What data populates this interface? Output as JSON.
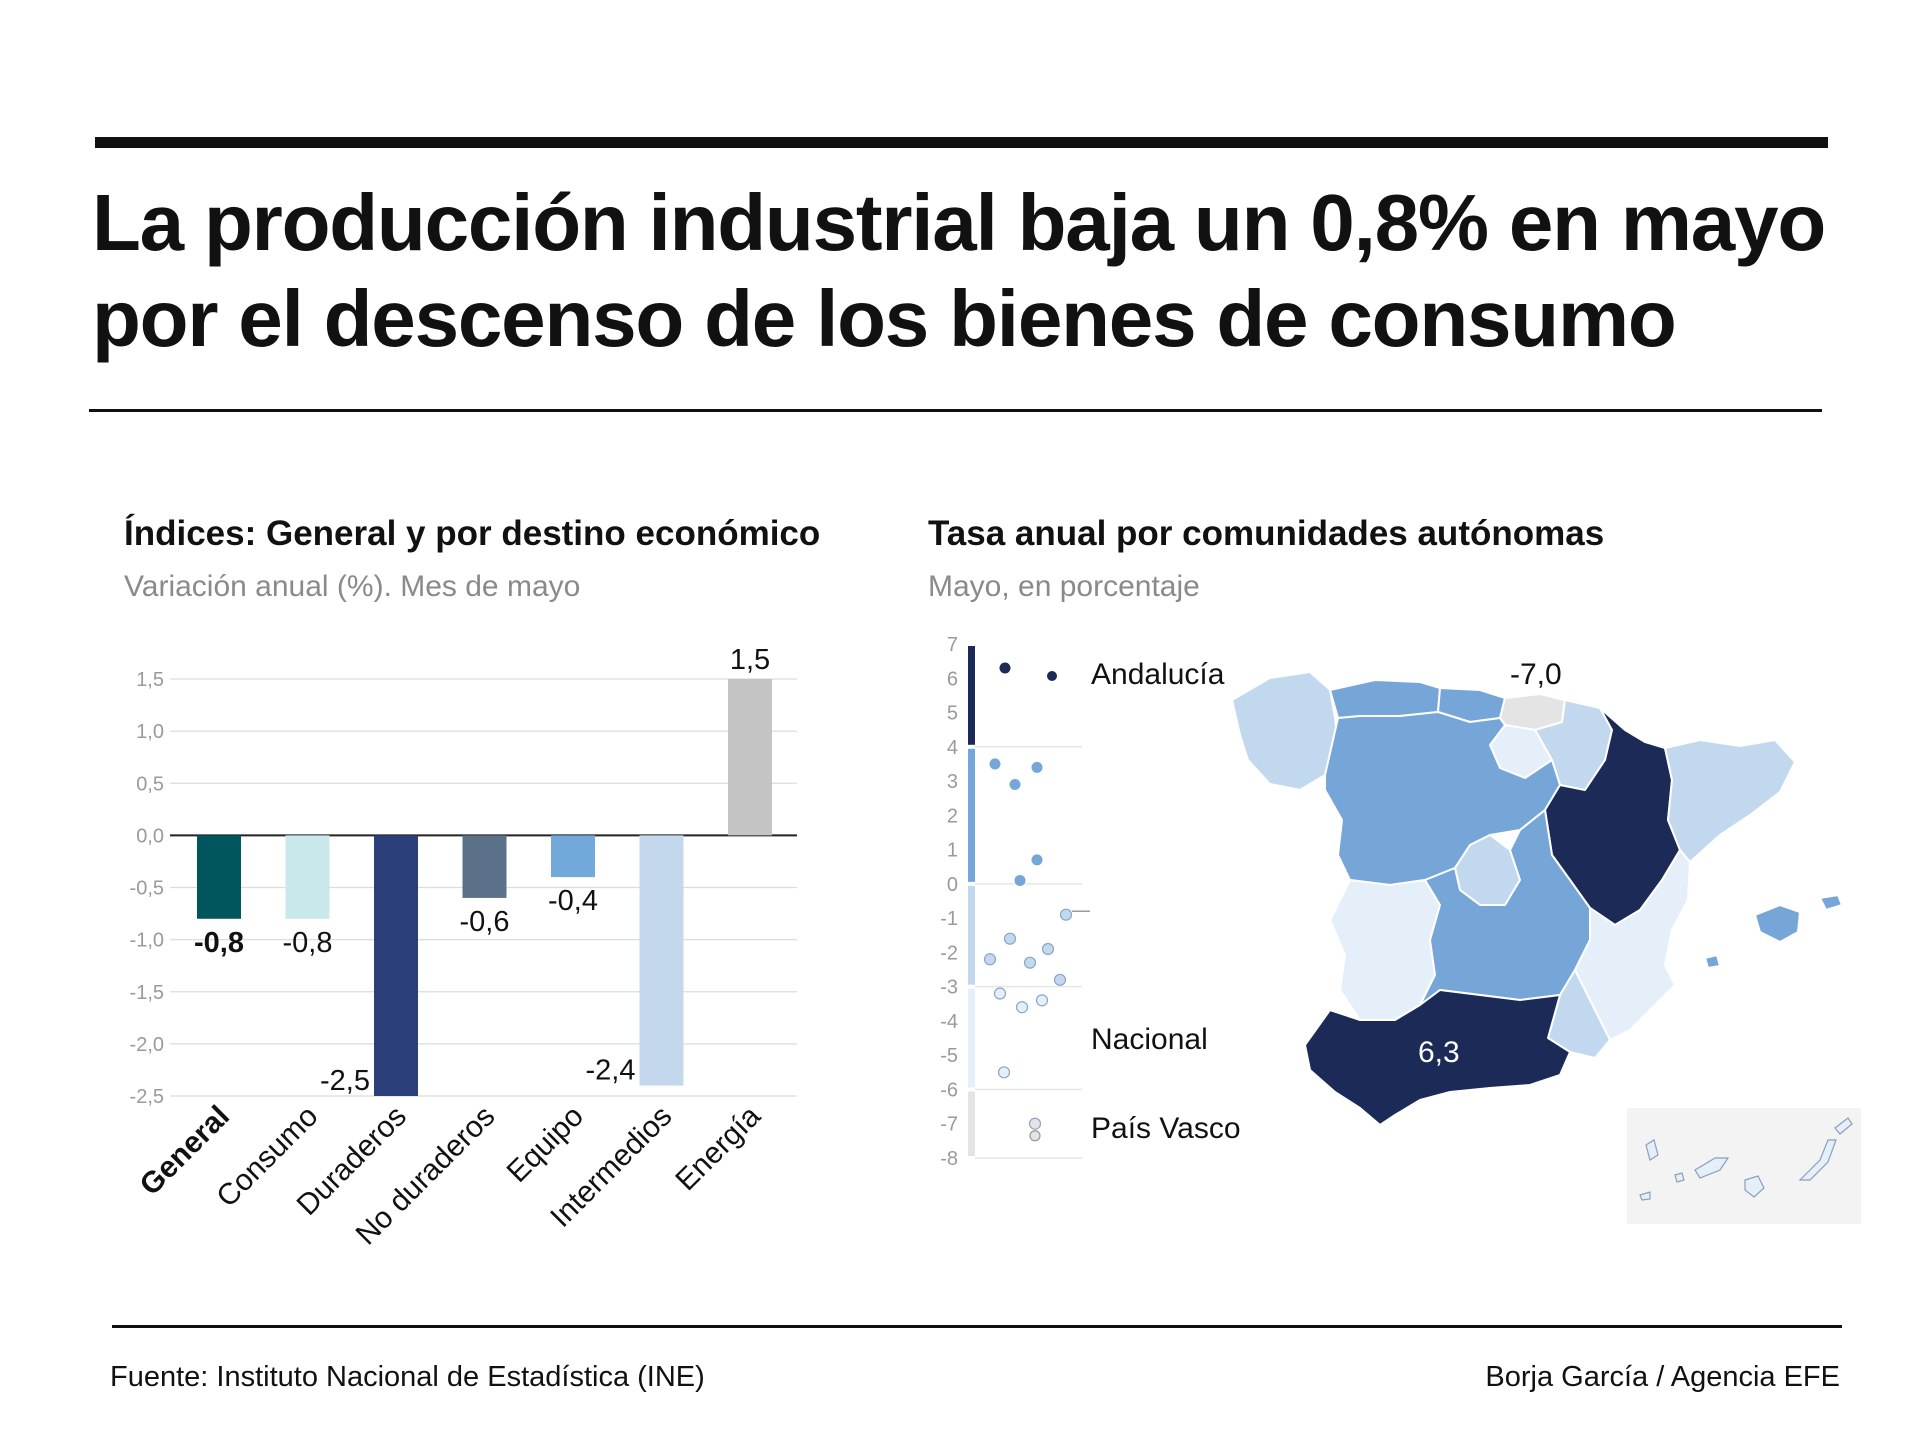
{
  "headline": {
    "line1": "La producción industrial baja un 0,8% en mayo",
    "line2": "por el descenso de los bienes de consumo"
  },
  "colors": {
    "general": "#00565c",
    "consumo": "#c9e8ec",
    "duraderos": "#2b3f7a",
    "no_duraderos": "#5b7189",
    "equipo": "#72a8da",
    "intermedios": "#c3d8ec",
    "energia": "#c4c4c4",
    "tier_dark": "#1b2a57",
    "tier_mid": "#76a6d8",
    "tier_light": "#c2d8ee",
    "tier_pale": "#e4eff9",
    "tier_grey": "#e4e4e4"
  },
  "chart_data": [
    {
      "type": "bar",
      "title": "Índices: General y por destino económico",
      "subtitle": "Variación anual (%). Mes de mayo",
      "categories": [
        "General",
        "Consumo",
        "Duraderos",
        "No duraderos",
        "Equipo",
        "Intermedios",
        "Energía"
      ],
      "values": [
        -0.8,
        -0.8,
        -2.5,
        -0.6,
        -0.4,
        -2.4,
        1.5
      ],
      "value_labels": [
        "-0,8",
        "-0,8",
        "-2,5",
        "-0,6",
        "-0,4",
        "-2,4",
        "1,5"
      ],
      "highlight": "General",
      "bar_colors": [
        "#00565c",
        "#c9e8ec",
        "#2b3f7a",
        "#5b7189",
        "#72a8da",
        "#c3d8ec",
        "#c4c4c4"
      ],
      "ylim": [
        -2.5,
        1.5
      ],
      "yticks": [
        1.5,
        1.0,
        0.5,
        0.0,
        -0.5,
        -1.0,
        -1.5,
        -2.0,
        -2.5
      ],
      "ytick_labels": [
        "1,5",
        "1,0",
        "0,5",
        "0,0",
        "-0,5",
        "-1,0",
        "-1,5",
        "-2,0",
        "-2,5"
      ],
      "grid": true,
      "xlabel": "",
      "ylabel": ""
    },
    {
      "type": "scatter",
      "title": "Tasa anual por comunidades autónomas",
      "subtitle": "Mayo, en porcentaje",
      "ylim": [
        -8,
        7
      ],
      "yticks": [
        7,
        6,
        5,
        4,
        3,
        2,
        1,
        0,
        -1,
        -2,
        -3,
        -4,
        -5,
        -6,
        -7,
        -8
      ],
      "bands": [
        {
          "from": 4,
          "to": 7,
          "color": "#1b2a57"
        },
        {
          "from": 0,
          "to": 4,
          "color": "#76a6d8"
        },
        {
          "from": -3,
          "to": 0,
          "color": "#c2d8ee"
        },
        {
          "from": -6,
          "to": -3,
          "color": "#e4eff9"
        },
        {
          "from": -8,
          "to": -6,
          "color": "#e4e4e4"
        }
      ],
      "points": [
        {
          "value": 6.3,
          "color": "#1b2a57"
        },
        {
          "value": 3.5,
          "color": "#76a6d8"
        },
        {
          "value": 3.4,
          "color": "#76a6d8"
        },
        {
          "value": 2.9,
          "color": "#76a6d8"
        },
        {
          "value": 0.7,
          "color": "#76a6d8"
        },
        {
          "value": 0.1,
          "color": "#76a6d8"
        },
        {
          "value": -0.9,
          "color": "#c2d8ee"
        },
        {
          "value": -1.6,
          "color": "#c2d8ee"
        },
        {
          "value": -1.9,
          "color": "#c2d8ee"
        },
        {
          "value": -2.2,
          "color": "#c2d8ee"
        },
        {
          "value": -2.3,
          "color": "#c2d8ee"
        },
        {
          "value": -2.8,
          "color": "#c2d8ee"
        },
        {
          "value": -3.2,
          "color": "#e4eff9"
        },
        {
          "value": -3.4,
          "color": "#e4eff9"
        },
        {
          "value": -3.6,
          "color": "#e4eff9"
        },
        {
          "value": -5.5,
          "color": "#e4eff9"
        },
        {
          "value": -7.0,
          "color": "#e4e4e4"
        }
      ],
      "annotations": [
        {
          "label": "Andalucía",
          "value": 6.3
        },
        {
          "label": "Nacional",
          "value": -0.8
        },
        {
          "label": "País Vasco",
          "value": -7.0
        }
      ],
      "map_labels": [
        {
          "region": "País Vasco",
          "text": "-7,0"
        },
        {
          "region": "Andalucía",
          "text": "6,3"
        }
      ]
    }
  ],
  "footer": {
    "source": "Fuente: Instituto Nacional de Estadística (INE)",
    "credit": "Borja García / Agencia EFE"
  }
}
